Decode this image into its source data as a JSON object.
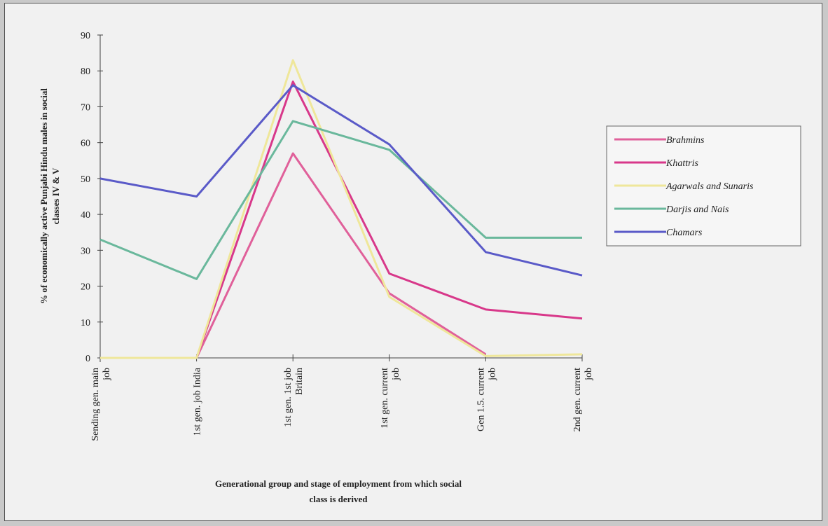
{
  "chart_data": {
    "type": "line",
    "categories": [
      [
        "Sending gen. main",
        "job"
      ],
      [
        "1st gen. job India"
      ],
      [
        "1st gen. 1st job",
        "Britain"
      ],
      [
        "1st gen. current",
        "job"
      ],
      [
        "Gen 1.5. current",
        "job"
      ],
      [
        "2nd gen. current",
        "job"
      ]
    ],
    "xlabel": [
      "Generational group and stage of employment from which social",
      "class is derived"
    ],
    "ylabel": [
      "% of economically active Punjabi Hindu males in social",
      "classes IV & V"
    ],
    "ylim": [
      0,
      90
    ],
    "yticks": [
      0,
      10,
      20,
      30,
      40,
      50,
      60,
      70,
      80,
      90
    ],
    "grid": false,
    "legend_position": "right",
    "series": [
      {
        "name": "Brahmins",
        "color": "#e0609a",
        "values": [
          null,
          0,
          57,
          18,
          1,
          null
        ]
      },
      {
        "name": "Khattris",
        "color": "#d8388a",
        "values": [
          null,
          0,
          77,
          23.5,
          13.5,
          11
        ]
      },
      {
        "name": "Agarwals and Sunaris",
        "color": "#efe79a",
        "values": [
          0,
          0,
          83,
          17,
          0.5,
          1
        ]
      },
      {
        "name": "Darjis and Nais",
        "color": "#6ab89c",
        "values": [
          33,
          22,
          66,
          58,
          33.5,
          33.5
        ]
      },
      {
        "name": "Chamars",
        "color": "#5a5ac8",
        "values": [
          50,
          45,
          76,
          59.5,
          29.5,
          23
        ]
      }
    ]
  }
}
